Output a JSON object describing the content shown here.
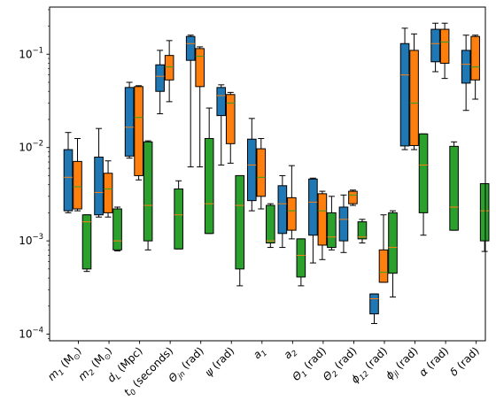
{
  "chart_data": {
    "type": "box",
    "yscale": "log",
    "ylim": [
      8.5e-05,
      0.32
    ],
    "y_ticks": [
      0.0001,
      0.001,
      0.01,
      0.1
    ],
    "y_tick_labels": [
      {
        "base": "10",
        "exp": "−4"
      },
      {
        "base": "10",
        "exp": "−3"
      },
      {
        "base": "10",
        "exp": "−2"
      },
      {
        "base": "10",
        "exp": "−1"
      }
    ],
    "categories": [
      {
        "main": "m",
        "sub": "1",
        "rest": " (M",
        "rsub": "⊙",
        "end": ")"
      },
      {
        "main": "m",
        "sub": "2",
        "rest": " (M",
        "rsub": "⊙",
        "end": ")"
      },
      {
        "main": "d",
        "sub": "L",
        "rest": " (Mpc)",
        "rsub": "",
        "end": ""
      },
      {
        "main": "t",
        "sub": "0",
        "rest": " (seconds)",
        "rsub": "",
        "end": ""
      },
      {
        "main": "Θ",
        "sub": "jn",
        "rest": " (rad)",
        "rsub": "",
        "end": ""
      },
      {
        "main": "ψ",
        "sub": "",
        "rest": " (rad)",
        "rsub": "",
        "end": ""
      },
      {
        "main": "a",
        "sub": "1",
        "rest": "",
        "rsub": "",
        "end": ""
      },
      {
        "main": "a",
        "sub": "2",
        "rest": "",
        "rsub": "",
        "end": ""
      },
      {
        "main": "Θ",
        "sub": "1",
        "rest": " (rad)",
        "rsub": "",
        "end": ""
      },
      {
        "main": "Θ",
        "sub": "2",
        "rest": " (rad)",
        "rsub": "",
        "end": ""
      },
      {
        "main": "ϕ",
        "sub": "12",
        "rest": " (rad)",
        "rsub": "",
        "end": ""
      },
      {
        "main": "ϕ",
        "sub": "jl",
        "rest": " (rad)",
        "rsub": "",
        "end": ""
      },
      {
        "main": "α",
        "sub": "",
        "rest": " (rad)",
        "rsub": "",
        "end": ""
      },
      {
        "main": "δ",
        "sub": "",
        "rest": " (rad)",
        "rsub": "",
        "end": ""
      }
    ],
    "series": [
      {
        "color": "#1f77b4",
        "boxes": [
          {
            "wlo": 0.002,
            "q1": 0.0021,
            "med": 0.0048,
            "q3": 0.0095,
            "whi": 0.0145
          },
          {
            "wlo": 0.0018,
            "q1": 0.0019,
            "med": 0.0033,
            "q3": 0.0079,
            "whi": 0.016
          },
          {
            "wlo": 0.0077,
            "q1": 0.0081,
            "med": 0.0165,
            "q3": 0.044,
            "whi": 0.05
          },
          {
            "wlo": 0.023,
            "q1": 0.04,
            "med": 0.058,
            "q3": 0.077,
            "whi": 0.11
          },
          {
            "wlo": 0.0062,
            "q1": 0.086,
            "med": 0.13,
            "q3": 0.155,
            "whi": 0.16
          },
          {
            "wlo": 0.0065,
            "q1": 0.022,
            "med": 0.036,
            "q3": 0.044,
            "whi": 0.047
          },
          {
            "wlo": 0.0021,
            "q1": 0.0027,
            "med": 0.0065,
            "q3": 0.0123,
            "whi": 0.0205
          },
          {
            "wlo": 0.00085,
            "q1": 0.0012,
            "med": 0.0025,
            "q3": 0.0039,
            "whi": 0.005
          },
          {
            "wlo": 0.00058,
            "q1": 0.00115,
            "med": 0.0026,
            "q3": 0.0046,
            "whi": 0.0047
          },
          {
            "wlo": 0.00075,
            "q1": 0.001,
            "med": 0.0017,
            "q3": 0.0023,
            "whi": 0.0031
          },
          {
            "wlo": 0.00013,
            "q1": 0.000165,
            "med": 0.00024,
            "q3": 0.00027,
            "whi": 0.00027
          },
          {
            "wlo": 0.0095,
            "q1": 0.0104,
            "med": 0.06,
            "q3": 0.13,
            "whi": 0.19
          },
          {
            "wlo": 0.065,
            "q1": 0.083,
            "med": 0.13,
            "q3": 0.185,
            "whi": 0.215
          },
          {
            "wlo": 0.025,
            "q1": 0.049,
            "med": 0.078,
            "q3": 0.11,
            "whi": 0.16
          }
        ]
      },
      {
        "color": "#ff7f0e",
        "boxes": [
          {
            "wlo": 0.0021,
            "q1": 0.0022,
            "med": 0.0038,
            "q3": 0.0071,
            "whi": 0.0125
          },
          {
            "wlo": 0.0018,
            "q1": 0.002,
            "med": 0.0036,
            "q3": 0.0053,
            "whi": 0.0072
          },
          {
            "wlo": 0.0045,
            "q1": 0.005,
            "med": 0.021,
            "q3": 0.045,
            "whi": 0.046
          },
          {
            "wlo": 0.031,
            "q1": 0.053,
            "med": 0.073,
            "q3": 0.097,
            "whi": 0.14
          },
          {
            "wlo": 0.0062,
            "q1": 0.045,
            "med": 0.095,
            "q3": 0.115,
            "whi": 0.12
          },
          {
            "wlo": 0.0068,
            "q1": 0.011,
            "med": 0.03,
            "q3": 0.037,
            "whi": 0.039
          },
          {
            "wlo": 0.0022,
            "q1": 0.003,
            "med": 0.0048,
            "q3": 0.0097,
            "whi": 0.0125
          },
          {
            "wlo": 0.00105,
            "q1": 0.0013,
            "med": 0.0021,
            "q3": 0.0029,
            "whi": 0.0064
          },
          {
            "wlo": 0.00063,
            "q1": 0.0009,
            "med": 0.0021,
            "q3": 0.0032,
            "whi": 0.0034
          },
          {
            "wlo": 0.0024,
            "q1": 0.0025,
            "med": 0.0031,
            "q3": 0.0034,
            "whi": 0.0035
          },
          {
            "wlo": 0.00036,
            "q1": 0.00036,
            "med": 0.00046,
            "q3": 0.0008,
            "whi": 0.0019
          },
          {
            "wlo": 0.0095,
            "q1": 0.0105,
            "med": 0.03,
            "q3": 0.11,
            "whi": 0.165
          },
          {
            "wlo": 0.055,
            "q1": 0.08,
            "med": 0.135,
            "q3": 0.185,
            "whi": 0.215
          },
          {
            "wlo": 0.033,
            "q1": 0.053,
            "med": 0.073,
            "q3": 0.155,
            "whi": 0.16
          }
        ]
      },
      {
        "color": "#2ca02c",
        "boxes": [
          {
            "wlo": 0.00047,
            "q1": 0.0005,
            "med": 0.0016,
            "q3": 0.0019,
            "whi": 0.0019
          },
          {
            "wlo": 0.00078,
            "q1": 0.0008,
            "med": 0.001,
            "q3": 0.0022,
            "whi": 0.0023
          },
          {
            "wlo": 0.0008,
            "q1": 0.001,
            "med": 0.0024,
            "q3": 0.0115,
            "whi": 0.0118
          },
          {
            "wlo": 0.00082,
            "q1": 0.00082,
            "med": 0.0019,
            "q3": 0.0036,
            "whi": 0.0044
          },
          {
            "wlo": 0.0012,
            "q1": 0.0012,
            "med": 0.0025,
            "q3": 0.0125,
            "whi": 0.0265
          },
          {
            "wlo": 0.00033,
            "q1": 0.0005,
            "med": 0.0024,
            "q3": 0.005,
            "whi": 0.005
          },
          {
            "wlo": 0.00085,
            "q1": 0.00095,
            "med": 0.001,
            "q3": 0.0024,
            "whi": 0.0025
          },
          {
            "wlo": 0.00033,
            "q1": 0.00041,
            "med": 0.0007,
            "q3": 0.00105,
            "whi": 0.00105
          },
          {
            "wlo": 0.0008,
            "q1": 0.00085,
            "med": 0.0011,
            "q3": 0.002,
            "whi": 0.003
          },
          {
            "wlo": 0.00095,
            "q1": 0.00105,
            "med": 0.0011,
            "q3": 0.0016,
            "whi": 0.0017
          },
          {
            "wlo": 0.00025,
            "q1": 0.00045,
            "med": 0.00085,
            "q3": 0.002,
            "whi": 0.0021
          },
          {
            "wlo": 0.00115,
            "q1": 0.002,
            "med": 0.0065,
            "q3": 0.014,
            "whi": 0.014
          },
          {
            "wlo": 0.0013,
            "q1": 0.0013,
            "med": 0.0023,
            "q3": 0.0103,
            "whi": 0.0115
          },
          {
            "wlo": 0.00077,
            "q1": 0.001,
            "med": 0.0021,
            "q3": 0.0041,
            "whi": 0.0041
          }
        ]
      }
    ]
  }
}
